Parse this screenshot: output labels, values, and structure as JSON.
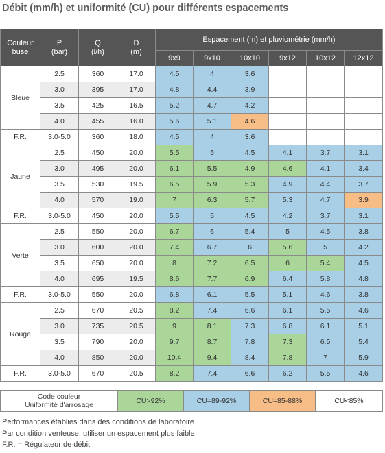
{
  "title": "Débit (mm/h) et uniformité (CU) pour différents espacements",
  "headers": {
    "couleur": "Couleur buse",
    "p": "P",
    "p_unit": "(bar)",
    "q": "Q",
    "q_unit": "(l/h)",
    "d": "D",
    "d_unit": "(m)",
    "spacing": "Espacement (m) et pluviométrie (mm/h)",
    "spacings": [
      "9x9",
      "9x10",
      "10x10",
      "9x12",
      "10x12",
      "12x12"
    ]
  },
  "colors": {
    "header_bg": "#555555",
    "green": "#aad69a",
    "blue": "#a8cfe6",
    "orange": "#f7bd86",
    "grey": "#ececec"
  },
  "groups": [
    {
      "color": "Bleue",
      "rows": [
        {
          "p": "2.5",
          "q": "360",
          "d": "17.0",
          "cells": [
            {
              "v": "4.5",
              "c": "blue"
            },
            {
              "v": "4",
              "c": "blue"
            },
            {
              "v": "3.6",
              "c": "blue"
            },
            {
              "v": "",
              "c": "empty"
            },
            {
              "v": "",
              "c": "empty"
            },
            {
              "v": "",
              "c": "empty"
            }
          ]
        },
        {
          "p": "3.0",
          "q": "395",
          "d": "17.0",
          "cells": [
            {
              "v": "4.8",
              "c": "blue"
            },
            {
              "v": "4.4",
              "c": "blue"
            },
            {
              "v": "3.9",
              "c": "blue"
            },
            {
              "v": "",
              "c": "empty"
            },
            {
              "v": "",
              "c": "empty"
            },
            {
              "v": "",
              "c": "empty"
            }
          ]
        },
        {
          "p": "3.5",
          "q": "425",
          "d": "16.5",
          "cells": [
            {
              "v": "5.2",
              "c": "blue"
            },
            {
              "v": "4.7",
              "c": "blue"
            },
            {
              "v": "4.2",
              "c": "blue"
            },
            {
              "v": "",
              "c": "empty"
            },
            {
              "v": "",
              "c": "empty"
            },
            {
              "v": "",
              "c": "empty"
            }
          ]
        },
        {
          "p": "4.0",
          "q": "455",
          "d": "16.0",
          "cells": [
            {
              "v": "5.6",
              "c": "blue"
            },
            {
              "v": "5.1",
              "c": "blue"
            },
            {
              "v": "4.6",
              "c": "orange"
            },
            {
              "v": "",
              "c": "empty"
            },
            {
              "v": "",
              "c": "empty"
            },
            {
              "v": "",
              "c": "empty"
            }
          ]
        }
      ],
      "fr": {
        "label": "F.R.",
        "p": "3.0-5.0",
        "q": "360",
        "d": "18.0",
        "cells": [
          {
            "v": "4.5",
            "c": "blue"
          },
          {
            "v": "4",
            "c": "blue"
          },
          {
            "v": "3.6",
            "c": "blue"
          },
          {
            "v": "",
            "c": "empty"
          },
          {
            "v": "",
            "c": "empty"
          },
          {
            "v": "",
            "c": "empty"
          }
        ]
      }
    },
    {
      "color": "Jaune",
      "rows": [
        {
          "p": "2.5",
          "q": "450",
          "d": "20.0",
          "cells": [
            {
              "v": "5.5",
              "c": "green"
            },
            {
              "v": "5",
              "c": "blue"
            },
            {
              "v": "4.5",
              "c": "blue"
            },
            {
              "v": "4.1",
              "c": "blue"
            },
            {
              "v": "3.7",
              "c": "blue"
            },
            {
              "v": "3.1",
              "c": "blue"
            }
          ]
        },
        {
          "p": "3.0",
          "q": "495",
          "d": "20.0",
          "cells": [
            {
              "v": "6.1",
              "c": "green"
            },
            {
              "v": "5.5",
              "c": "green"
            },
            {
              "v": "4.9",
              "c": "green"
            },
            {
              "v": "4.6",
              "c": "green"
            },
            {
              "v": "4.1",
              "c": "blue"
            },
            {
              "v": "3.4",
              "c": "blue"
            }
          ]
        },
        {
          "p": "3.5",
          "q": "530",
          "d": "19.5",
          "cells": [
            {
              "v": "6.5",
              "c": "green"
            },
            {
              "v": "5.9",
              "c": "green"
            },
            {
              "v": "5.3",
              "c": "green"
            },
            {
              "v": "4.9",
              "c": "blue"
            },
            {
              "v": "4.4",
              "c": "blue"
            },
            {
              "v": "3.7",
              "c": "blue"
            }
          ]
        },
        {
          "p": "4.0",
          "q": "570",
          "d": "19.0",
          "cells": [
            {
              "v": "7",
              "c": "green"
            },
            {
              "v": "6.3",
              "c": "green"
            },
            {
              "v": "5.7",
              "c": "green"
            },
            {
              "v": "5.3",
              "c": "blue"
            },
            {
              "v": "4.7",
              "c": "blue"
            },
            {
              "v": "3.9",
              "c": "orange"
            }
          ]
        }
      ],
      "fr": {
        "label": "F.R.",
        "p": "3.0-5.0",
        "q": "450",
        "d": "20.0",
        "cells": [
          {
            "v": "5.5",
            "c": "blue"
          },
          {
            "v": "5",
            "c": "blue"
          },
          {
            "v": "4.5",
            "c": "blue"
          },
          {
            "v": "4.2",
            "c": "blue"
          },
          {
            "v": "3.7",
            "c": "blue"
          },
          {
            "v": "3.1",
            "c": "blue"
          }
        ]
      }
    },
    {
      "color": "Verte",
      "rows": [
        {
          "p": "2.5",
          "q": "550",
          "d": "20.0",
          "cells": [
            {
              "v": "6.7",
              "c": "green"
            },
            {
              "v": "6",
              "c": "blue"
            },
            {
              "v": "5.4",
              "c": "blue"
            },
            {
              "v": "5",
              "c": "blue"
            },
            {
              "v": "4.5",
              "c": "blue"
            },
            {
              "v": "3.8",
              "c": "blue"
            }
          ]
        },
        {
          "p": "3.0",
          "q": "600",
          "d": "20.0",
          "cells": [
            {
              "v": "7.4",
              "c": "green"
            },
            {
              "v": "6.7",
              "c": "blue"
            },
            {
              "v": "6",
              "c": "blue"
            },
            {
              "v": "5.6",
              "c": "green"
            },
            {
              "v": "5",
              "c": "blue"
            },
            {
              "v": "4.2",
              "c": "blue"
            }
          ]
        },
        {
          "p": "3.5",
          "q": "650",
          "d": "20.0",
          "cells": [
            {
              "v": "8",
              "c": "green"
            },
            {
              "v": "7.2",
              "c": "green"
            },
            {
              "v": "6.5",
              "c": "green"
            },
            {
              "v": "6",
              "c": "green"
            },
            {
              "v": "5.4",
              "c": "green"
            },
            {
              "v": "4.5",
              "c": "blue"
            }
          ]
        },
        {
          "p": "4.0",
          "q": "695",
          "d": "19.5",
          "cells": [
            {
              "v": "8.6",
              "c": "green"
            },
            {
              "v": "7.7",
              "c": "green"
            },
            {
              "v": "6.9",
              "c": "green"
            },
            {
              "v": "6.4",
              "c": "blue"
            },
            {
              "v": "5.8",
              "c": "blue"
            },
            {
              "v": "4.8",
              "c": "blue"
            }
          ]
        }
      ],
      "fr": {
        "label": "F.R.",
        "p": "3.0-5.0",
        "q": "550",
        "d": "20.0",
        "cells": [
          {
            "v": "6.8",
            "c": "blue"
          },
          {
            "v": "6.1",
            "c": "blue"
          },
          {
            "v": "5.5",
            "c": "blue"
          },
          {
            "v": "5.1",
            "c": "blue"
          },
          {
            "v": "4.6",
            "c": "blue"
          },
          {
            "v": "3.8",
            "c": "blue"
          }
        ]
      }
    },
    {
      "color": "Rouge",
      "rows": [
        {
          "p": "2.5",
          "q": "670",
          "d": "20.5",
          "cells": [
            {
              "v": "8.2",
              "c": "green"
            },
            {
              "v": "7.4",
              "c": "blue"
            },
            {
              "v": "6.6",
              "c": "blue"
            },
            {
              "v": "6.1",
              "c": "blue"
            },
            {
              "v": "5.5",
              "c": "blue"
            },
            {
              "v": "4.6",
              "c": "blue"
            }
          ]
        },
        {
          "p": "3.0",
          "q": "735",
          "d": "20.5",
          "cells": [
            {
              "v": "9",
              "c": "green"
            },
            {
              "v": "8.1",
              "c": "green"
            },
            {
              "v": "7.3",
              "c": "blue"
            },
            {
              "v": "6.8",
              "c": "blue"
            },
            {
              "v": "6.1",
              "c": "blue"
            },
            {
              "v": "5.1",
              "c": "blue"
            }
          ]
        },
        {
          "p": "3.5",
          "q": "790",
          "d": "20.0",
          "cells": [
            {
              "v": "9.7",
              "c": "green"
            },
            {
              "v": "8.7",
              "c": "green"
            },
            {
              "v": "7.8",
              "c": "blue"
            },
            {
              "v": "7.3",
              "c": "green"
            },
            {
              "v": "6.5",
              "c": "blue"
            },
            {
              "v": "5.4",
              "c": "blue"
            }
          ]
        },
        {
          "p": "4.0",
          "q": "850",
          "d": "20.0",
          "cells": [
            {
              "v": "10.4",
              "c": "green"
            },
            {
              "v": "9.4",
              "c": "green"
            },
            {
              "v": "8.4",
              "c": "blue"
            },
            {
              "v": "7.8",
              "c": "green"
            },
            {
              "v": "7",
              "c": "blue"
            },
            {
              "v": "5.9",
              "c": "blue"
            }
          ]
        }
      ],
      "fr": {
        "label": "F.R.",
        "p": "3.0-5.0",
        "q": "670",
        "d": "20.5",
        "cells": [
          {
            "v": "8.2",
            "c": "green"
          },
          {
            "v": "7.4",
            "c": "blue"
          },
          {
            "v": "6.6",
            "c": "blue"
          },
          {
            "v": "6.2",
            "c": "blue"
          },
          {
            "v": "5.5",
            "c": "blue"
          },
          {
            "v": "4.6",
            "c": "blue"
          }
        ]
      }
    }
  ],
  "legend": {
    "label": "Code couleur\nUniformité d'arrosage",
    "items": [
      {
        "text": "CU>92%",
        "c": "green"
      },
      {
        "text": "CU=89-92%",
        "c": "blue"
      },
      {
        "text": "CU=85-88%",
        "c": "orange"
      },
      {
        "text": "CU<85%",
        "c": "white"
      }
    ]
  },
  "notes": [
    "Performances établies dans des conditions de laboratoire",
    "Par condition venteuse, utiliser un espacement plus faible",
    "F.R. = Régulateur de débit"
  ]
}
